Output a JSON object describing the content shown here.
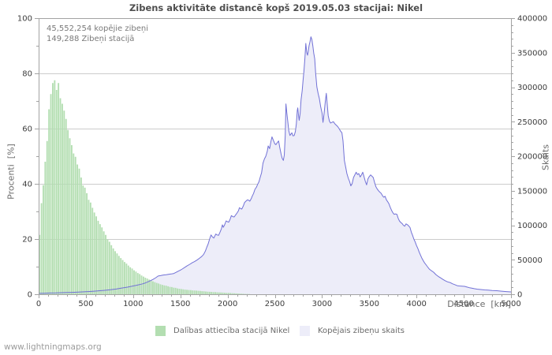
{
  "page": {
    "title": "Zibens aktivitāte distancē kopš 2019.05.03 stacijai: Nikel",
    "annotation_line1": "45,552,254 kopējie zibeņi",
    "annotation_line2": "149,288 Zibeņi stacijā",
    "footer": "www.lightningmaps.org"
  },
  "colors": {
    "title_text": "#4f4f4f",
    "annotation_text": "#7a7a7a",
    "axis_frame": "#a3a3a3",
    "grid": "#cccccc",
    "tick_label": "#3c3c3c",
    "axis_label": "#6b6b6b",
    "legend_text": "#6b6b6b",
    "footer_text": "#9c9c9c",
    "green_fill": "#b3deb1",
    "area_fill": "#ededf9",
    "line": "#7171d6"
  },
  "chart_data": {
    "type": "mixed: bar histogram (left axis) + area-line (right axis)",
    "title": "Zibens aktivitāte distancē kopš 2019.05.03 stacijai: Nikel",
    "xlabel": "Distance  [km]",
    "xlim": [
      0,
      5000
    ],
    "x_major_ticks": [
      0,
      500,
      1000,
      1500,
      2000,
      2500,
      3000,
      3500,
      4000,
      4500,
      5000
    ],
    "x_minor_step": 100,
    "left_axis": {
      "label": "Procenti  [%]",
      "lim": [
        0,
        100
      ],
      "major_step": 20,
      "minor_step": 10
    },
    "right_axis": {
      "label": "Skaits",
      "lim": [
        0,
        400000
      ],
      "major_step": 50000,
      "minor_step": 10000
    },
    "grid_levels_left": [
      20,
      40,
      60,
      80
    ],
    "legend_position": "bottom",
    "series": [
      {
        "name": "Dalības attiecība stacijā Nikel",
        "type": "bar",
        "axis": "left",
        "bin_width_km": 20,
        "x_start_km": 0,
        "values_percent": [
          21.5,
          33,
          39.5,
          48,
          55.5,
          67,
          72.5,
          76.5,
          77.5,
          74,
          76.5,
          71,
          69,
          66.5,
          63.5,
          59.5,
          56.5,
          54,
          51,
          49.8,
          47,
          45.5,
          42.3,
          39.4,
          38.6,
          36.6,
          34.2,
          33.2,
          31.3,
          29.6,
          28.2,
          26.6,
          25.4,
          24.2,
          22.8,
          21.5,
          19.9,
          19,
          17.8,
          16.6,
          15.6,
          14.8,
          13.9,
          13.1,
          12.4,
          11.7,
          11.1,
          10.4,
          9.8,
          9.3,
          8.7,
          8.2,
          7.7,
          7.3,
          6.8,
          6.4,
          6,
          5.7,
          5.3,
          5,
          4.7,
          4.4,
          4.1,
          3.9,
          3.6,
          3.4,
          3.2,
          3.1,
          2.9,
          2.7,
          2.6,
          2.4,
          2.3,
          2.1,
          2,
          1.9,
          1.8,
          1.7,
          1.6,
          1.55,
          1.5,
          1.4,
          1.35,
          1.3,
          1.25,
          1.2,
          1.1,
          1.05,
          1,
          0.95,
          0.9,
          0.85,
          0.8,
          0.78,
          0.72,
          0.7,
          0.65,
          0.6,
          0.55,
          0.52,
          0.5,
          0.45,
          0.4,
          0.35,
          0.3,
          0.28,
          0.24,
          0.2,
          0.15,
          0.12,
          0.1,
          0.07
        ]
      },
      {
        "name": "Kopējais zibeņu skaits",
        "type": "area-line",
        "axis": "right",
        "points_km_count": [
          [
            0,
            1200
          ],
          [
            60,
            1500
          ],
          [
            120,
            1800
          ],
          [
            180,
            2000
          ],
          [
            240,
            2300
          ],
          [
            300,
            2500
          ],
          [
            360,
            2800
          ],
          [
            420,
            3100
          ],
          [
            480,
            3500
          ],
          [
            540,
            4000
          ],
          [
            600,
            4600
          ],
          [
            660,
            5200
          ],
          [
            700,
            5700
          ],
          [
            760,
            6500
          ],
          [
            820,
            7600
          ],
          [
            880,
            9000
          ],
          [
            940,
            10300
          ],
          [
            1000,
            12000
          ],
          [
            1050,
            13500
          ],
          [
            1100,
            15100
          ],
          [
            1130,
            16500
          ],
          [
            1160,
            18200
          ],
          [
            1180,
            19500
          ],
          [
            1210,
            21500
          ],
          [
            1240,
            24000
          ],
          [
            1265,
            26400
          ],
          [
            1290,
            27000
          ],
          [
            1320,
            27900
          ],
          [
            1350,
            28300
          ],
          [
            1380,
            29000
          ],
          [
            1410,
            29600
          ],
          [
            1430,
            30100
          ],
          [
            1455,
            31800
          ],
          [
            1475,
            33200
          ],
          [
            1500,
            35000
          ],
          [
            1520,
            36600
          ],
          [
            1545,
            38700
          ],
          [
            1570,
            41000
          ],
          [
            1600,
            43400
          ],
          [
            1625,
            45600
          ],
          [
            1650,
            47300
          ],
          [
            1680,
            50000
          ],
          [
            1700,
            52000
          ],
          [
            1725,
            54600
          ],
          [
            1745,
            57500
          ],
          [
            1765,
            62500
          ],
          [
            1780,
            68000
          ],
          [
            1795,
            73000
          ],
          [
            1810,
            80000
          ],
          [
            1825,
            86000
          ],
          [
            1840,
            83000
          ],
          [
            1855,
            81500
          ],
          [
            1875,
            87200
          ],
          [
            1890,
            86000
          ],
          [
            1905,
            85400
          ],
          [
            1920,
            90000
          ],
          [
            1935,
            95000
          ],
          [
            1945,
            100600
          ],
          [
            1955,
            97000
          ],
          [
            1970,
            101000
          ],
          [
            1985,
            106300
          ],
          [
            2000,
            105000
          ],
          [
            2012,
            104400
          ],
          [
            2025,
            108000
          ],
          [
            2040,
            113900
          ],
          [
            2055,
            112500
          ],
          [
            2070,
            112000
          ],
          [
            2085,
            115000
          ],
          [
            2100,
            117700
          ],
          [
            2115,
            121000
          ],
          [
            2125,
            125400
          ],
          [
            2140,
            124000
          ],
          [
            2150,
            123400
          ],
          [
            2165,
            127500
          ],
          [
            2180,
            133000
          ],
          [
            2195,
            135000
          ],
          [
            2210,
            136800
          ],
          [
            2225,
            136000
          ],
          [
            2235,
            134900
          ],
          [
            2250,
            138500
          ],
          [
            2262,
            142500
          ],
          [
            2275,
            146000
          ],
          [
            2290,
            152000
          ],
          [
            2305,
            155000
          ],
          [
            2320,
            159600
          ],
          [
            2332,
            163000
          ],
          [
            2345,
            169100
          ],
          [
            2360,
            176000
          ],
          [
            2375,
            190000
          ],
          [
            2390,
            196000
          ],
          [
            2405,
            200000
          ],
          [
            2420,
            207000
          ],
          [
            2430,
            214900
          ],
          [
            2445,
            211000
          ],
          [
            2460,
            222000
          ],
          [
            2470,
            228000
          ],
          [
            2485,
            223000
          ],
          [
            2500,
            218000
          ],
          [
            2512,
            216800
          ],
          [
            2525,
            219500
          ],
          [
            2540,
            222000
          ],
          [
            2552,
            213000
          ],
          [
            2565,
            204000
          ],
          [
            2578,
            197000
          ],
          [
            2590,
            194000
          ],
          [
            2600,
            201500
          ],
          [
            2610,
            230000
          ],
          [
            2618,
            275800
          ],
          [
            2628,
            262000
          ],
          [
            2637,
            251000
          ],
          [
            2648,
            237000
          ],
          [
            2660,
            230100
          ],
          [
            2670,
            232000
          ],
          [
            2680,
            233900
          ],
          [
            2692,
            229500
          ],
          [
            2705,
            230000
          ],
          [
            2718,
            236000
          ],
          [
            2728,
            247000
          ],
          [
            2738,
            266300
          ],
          [
            2743,
            270000
          ],
          [
            2750,
            260000
          ],
          [
            2758,
            252000
          ],
          [
            2768,
            262000
          ],
          [
            2778,
            282000
          ],
          [
            2790,
            294900
          ],
          [
            2800,
            311000
          ],
          [
            2808,
            323000
          ],
          [
            2818,
            341000
          ],
          [
            2828,
            363400
          ],
          [
            2838,
            350000
          ],
          [
            2846,
            346300
          ],
          [
            2854,
            352000
          ],
          [
            2862,
            360000
          ],
          [
            2872,
            366000
          ],
          [
            2882,
            373000
          ],
          [
            2892,
            369000
          ],
          [
            2902,
            360000
          ],
          [
            2912,
            349000
          ],
          [
            2922,
            341000
          ],
          [
            2932,
            320000
          ],
          [
            2945,
            300600
          ],
          [
            2958,
            291000
          ],
          [
            2972,
            283400
          ],
          [
            2985,
            272000
          ],
          [
            3000,
            262500
          ],
          [
            3010,
            249000
          ],
          [
            3022,
            262000
          ],
          [
            3035,
            280000
          ],
          [
            3045,
            291100
          ],
          [
            3055,
            275000
          ],
          [
            3065,
            258700
          ],
          [
            3078,
            251000
          ],
          [
            3090,
            248000
          ],
          [
            3105,
            249100
          ],
          [
            3120,
            250000
          ],
          [
            3135,
            247000
          ],
          [
            3150,
            245000
          ],
          [
            3165,
            243000
          ],
          [
            3180,
            240000
          ],
          [
            3195,
            236500
          ],
          [
            3210,
            234000
          ],
          [
            3222,
            222000
          ],
          [
            3236,
            194000
          ],
          [
            3250,
            184000
          ],
          [
            3263,
            174900
          ],
          [
            3278,
            168000
          ],
          [
            3291,
            163400
          ],
          [
            3305,
            157000
          ],
          [
            3318,
            160000
          ],
          [
            3333,
            169100
          ],
          [
            3347,
            173000
          ],
          [
            3361,
            176800
          ],
          [
            3375,
            173500
          ],
          [
            3389,
            174900
          ],
          [
            3403,
            170000
          ],
          [
            3417,
            173000
          ],
          [
            3431,
            176800
          ],
          [
            3445,
            170000
          ],
          [
            3458,
            163400
          ],
          [
            3472,
            158500
          ],
          [
            3486,
            167200
          ],
          [
            3500,
            170500
          ],
          [
            3514,
            172900
          ],
          [
            3528,
            171000
          ],
          [
            3542,
            169100
          ],
          [
            3556,
            162000
          ],
          [
            3570,
            155800
          ],
          [
            3584,
            152500
          ],
          [
            3597,
            150100
          ],
          [
            3611,
            148000
          ],
          [
            3625,
            146300
          ],
          [
            3639,
            143000
          ],
          [
            3653,
            140600
          ],
          [
            3667,
            142000
          ],
          [
            3681,
            136800
          ],
          [
            3695,
            134000
          ],
          [
            3708,
            131100
          ],
          [
            3722,
            126000
          ],
          [
            3736,
            121500
          ],
          [
            3750,
            118000
          ],
          [
            3764,
            115800
          ],
          [
            3778,
            116500
          ],
          [
            3792,
            115800
          ],
          [
            3806,
            110000
          ],
          [
            3819,
            106300
          ],
          [
            3833,
            104000
          ],
          [
            3847,
            102500
          ],
          [
            3861,
            100000
          ],
          [
            3875,
            98600
          ],
          [
            3889,
            102000
          ],
          [
            3903,
            100800
          ],
          [
            3917,
            99000
          ],
          [
            3931,
            96800
          ],
          [
            3945,
            90000
          ],
          [
            3958,
            85400
          ],
          [
            3972,
            80000
          ],
          [
            3986,
            75800
          ],
          [
            4000,
            70500
          ],
          [
            4014,
            66300
          ],
          [
            4028,
            61000
          ],
          [
            4042,
            56800
          ],
          [
            4056,
            52500
          ],
          [
            4069,
            49100
          ],
          [
            4083,
            46000
          ],
          [
            4097,
            43400
          ],
          [
            4115,
            40000
          ],
          [
            4135,
            36500
          ],
          [
            4160,
            33800
          ],
          [
            4180,
            32000
          ],
          [
            4205,
            28500
          ],
          [
            4230,
            25800
          ],
          [
            4255,
            23800
          ],
          [
            4280,
            21500
          ],
          [
            4305,
            19500
          ],
          [
            4330,
            18000
          ],
          [
            4355,
            17000
          ],
          [
            4380,
            15200
          ],
          [
            4405,
            13900
          ],
          [
            4430,
            12500
          ],
          [
            4455,
            12000
          ],
          [
            4480,
            11800
          ],
          [
            4510,
            11400
          ],
          [
            4535,
            10400
          ],
          [
            4560,
            9500
          ],
          [
            4585,
            8800
          ],
          [
            4610,
            8100
          ],
          [
            4640,
            7400
          ],
          [
            4680,
            6900
          ],
          [
            4720,
            6300
          ],
          [
            4760,
            5900
          ],
          [
            4800,
            5400
          ],
          [
            4850,
            5100
          ],
          [
            4900,
            4500
          ],
          [
            4950,
            3900
          ],
          [
            5000,
            3400
          ]
        ]
      }
    ],
    "legend": [
      {
        "label": "Dalības attiecība stacijā Nikel",
        "swatch_color": "green_fill"
      },
      {
        "label": "Kopējais zibeņu skaits",
        "swatch_color": "area_fill"
      }
    ]
  }
}
